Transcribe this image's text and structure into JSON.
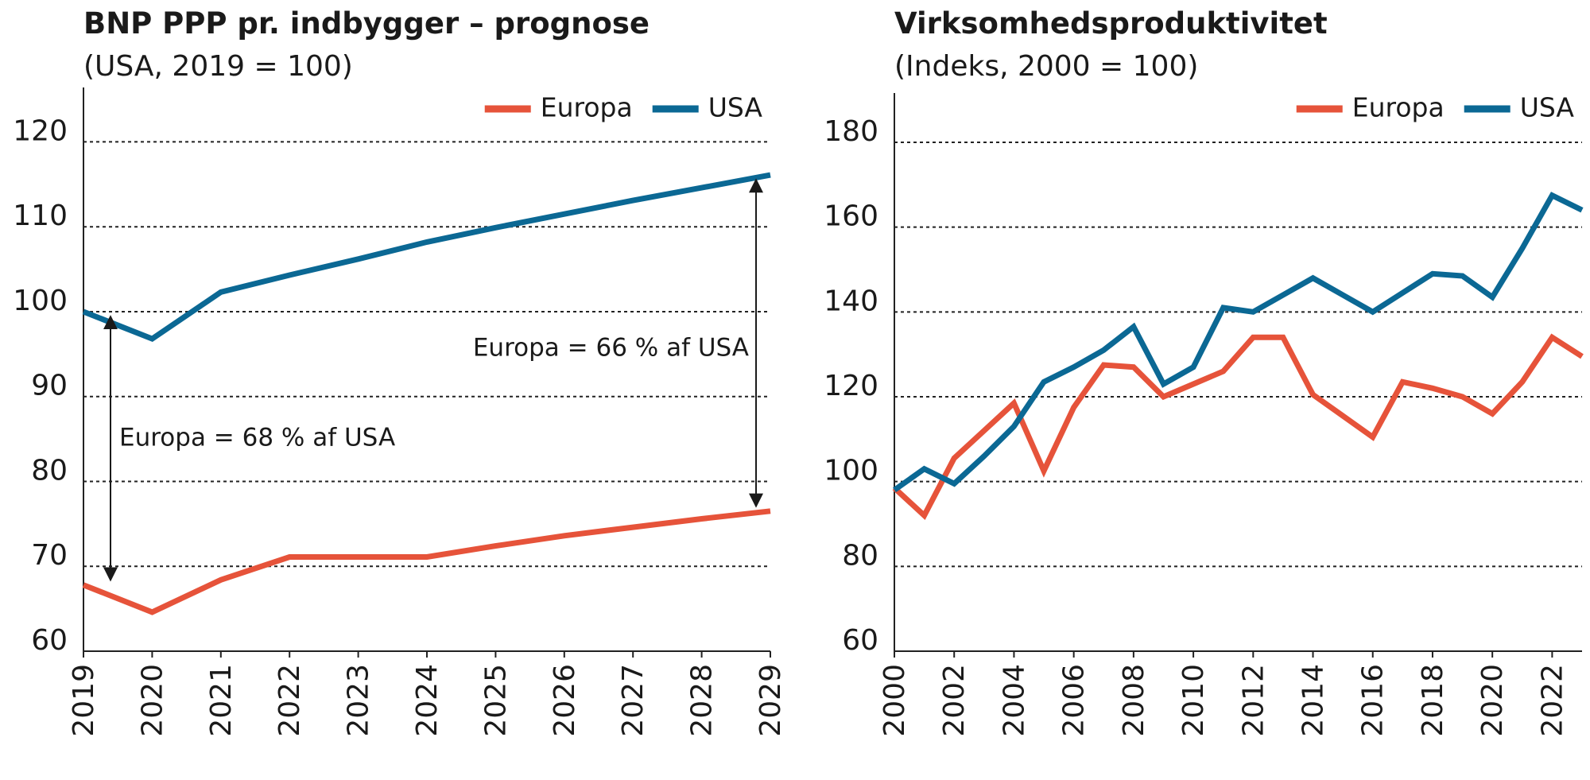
{
  "chart_data": [
    {
      "type": "line",
      "title": "BNP PPP pr. indbygger – prognose",
      "subtitle": "(USA, 2019 = 100)",
      "x": [
        2019,
        2020,
        2021,
        2022,
        2023,
        2024,
        2025,
        2026,
        2027,
        2028,
        2029
      ],
      "series": [
        {
          "name": "Europa",
          "color": "#e6533a",
          "values": [
            67.8,
            64.6,
            68.4,
            71.1,
            71.1,
            71.1,
            72.4,
            73.6,
            74.6,
            75.6,
            76.5
          ]
        },
        {
          "name": "USA",
          "color": "#0b6894",
          "values": [
            100,
            96.8,
            102.3,
            104.3,
            106.2,
            108.2,
            109.9,
            111.5,
            113.1,
            114.6,
            116.1
          ]
        }
      ],
      "xlim": [
        2019,
        2029
      ],
      "xticks": [
        2019,
        2020,
        2021,
        2022,
        2023,
        2024,
        2025,
        2026,
        2027,
        2028,
        2029
      ],
      "ylim": [
        60,
        123.6
      ],
      "yticks": [
        60,
        70,
        80,
        90,
        100,
        110,
        120
      ],
      "grid": true,
      "legend": "upper right",
      "annotations": [
        "Europa = 68 % af USA",
        "Europa = 66 % af USA"
      ]
    },
    {
      "type": "line",
      "title": "Virksomhedsproduktivitet",
      "subtitle": "(Indeks, 2000 = 100)",
      "x": [
        2000,
        2001,
        2002,
        2003,
        2004,
        2005,
        2006,
        2007,
        2008,
        2009,
        2010,
        2011,
        2012,
        2013,
        2014,
        2015,
        2016,
        2017,
        2018,
        2019,
        2020,
        2021,
        2022,
        2023
      ],
      "series": [
        {
          "name": "Europa",
          "color": "#e6533a",
          "values": [
            98.5,
            92,
            105.5,
            112,
            118.5,
            102.5,
            117.5,
            127.5,
            127,
            120,
            123,
            126,
            134,
            134,
            120.5,
            115.5,
            110.5,
            123.5,
            122,
            120,
            116,
            123.5,
            134,
            129.5
          ]
        },
        {
          "name": "USA",
          "color": "#0b6894",
          "values": [
            98,
            103,
            99.5,
            106,
            113,
            123.5,
            127,
            131,
            136.5,
            123,
            127,
            141,
            140,
            144,
            148,
            144,
            140,
            144.5,
            149,
            148.5,
            143.5,
            155,
            167.5,
            164
          ]
        }
      ],
      "xlim": [
        2000,
        2023
      ],
      "xticks": [
        2000,
        2002,
        2004,
        2006,
        2008,
        2010,
        2012,
        2014,
        2016,
        2018,
        2020,
        2022
      ],
      "ylim": [
        60,
        186
      ],
      "yticks": [
        60,
        80,
        100,
        120,
        140,
        160,
        180
      ],
      "grid": true,
      "legend": "upper right"
    }
  ]
}
